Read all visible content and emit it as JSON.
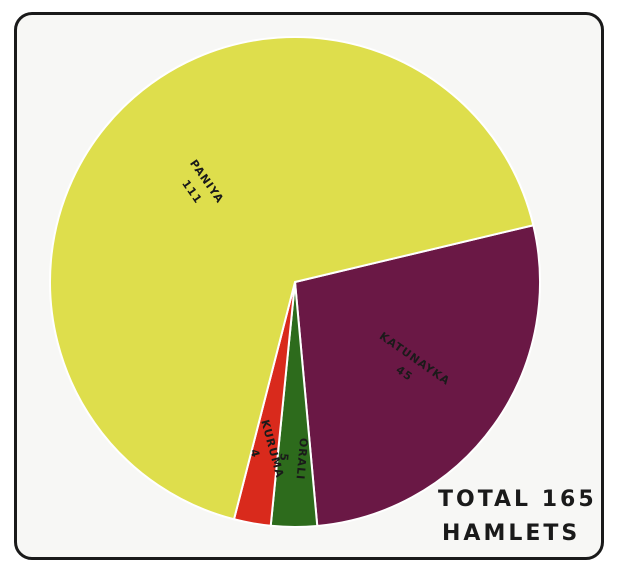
{
  "chart_data": {
    "type": "pie",
    "title": "",
    "slices": [
      {
        "label": "PANIYA",
        "value": 111,
        "color": "#dede4c"
      },
      {
        "label": "KATUNAYKA",
        "value": 45,
        "color": "#6a1845"
      },
      {
        "label": "ORALI",
        "value": 5,
        "color": "#2d6b1c"
      },
      {
        "label": "KURUMA",
        "value": 4,
        "color": "#d92a1c"
      }
    ],
    "annotation": {
      "line1": "TOTAL 165",
      "line2": "HAMLETS"
    }
  }
}
